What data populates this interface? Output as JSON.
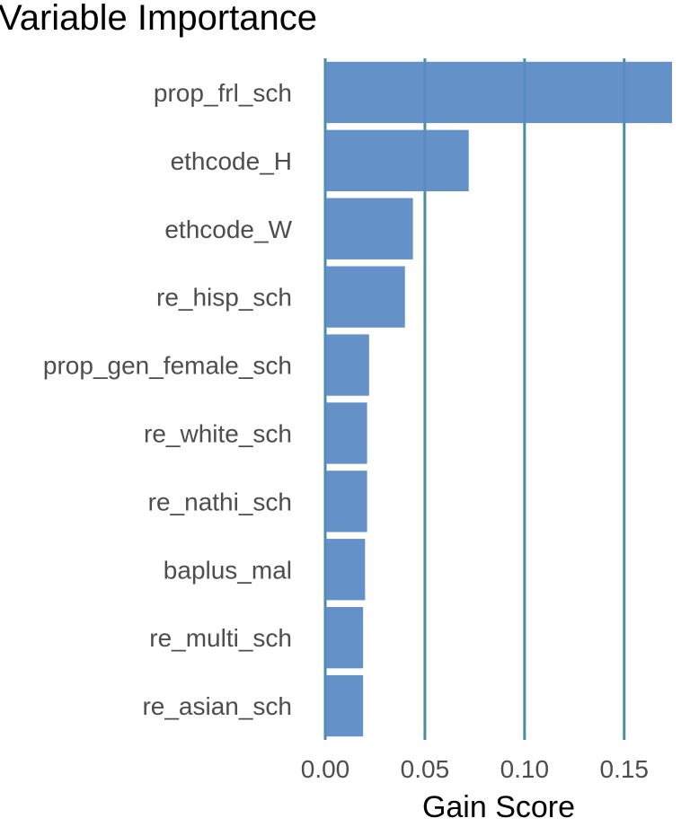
{
  "chart_data": {
    "type": "bar",
    "orientation": "horizontal",
    "title": "Variable Importance",
    "xlabel": "Gain Score",
    "ylabel": "",
    "categories": [
      "prop_frl_sch",
      "ethcode_H",
      "ethcode_W",
      "re_hisp_sch",
      "prop_gen_female_sch",
      "re_white_sch",
      "re_nathi_sch",
      "baplus_mal",
      "re_multi_sch",
      "re_asian_sch"
    ],
    "values": [
      0.175,
      0.072,
      0.044,
      0.04,
      0.022,
      0.021,
      0.021,
      0.02,
      0.019,
      0.019
    ],
    "xlim": [
      0,
      0.174
    ],
    "xticks": [
      0.0,
      0.05,
      0.1,
      0.15
    ],
    "xtick_labels": [
      "0.00",
      "0.05",
      "0.10",
      "0.15"
    ],
    "grid": "vertical major lines",
    "legend": "none"
  },
  "colors": {
    "bar": "#5b8bc5",
    "gridline": "#4a8fa0",
    "text": "#4d4d4d",
    "title": "#000000"
  }
}
